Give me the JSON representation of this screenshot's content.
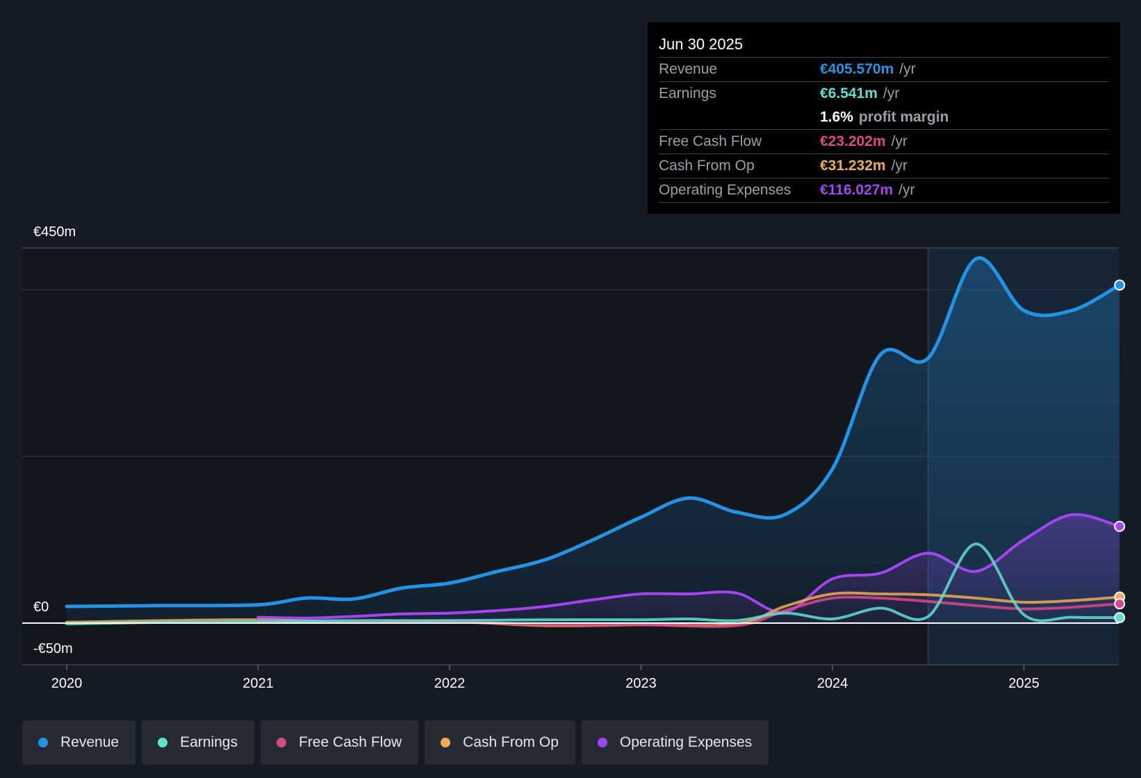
{
  "tooltip": {
    "date": "Jun 30 2025",
    "rows": {
      "revenue": {
        "label": "Revenue",
        "value": "€405.570m",
        "unit": "/yr",
        "color": "#2394e5"
      },
      "earnings": {
        "label": "Earnings",
        "value": "€6.541m",
        "unit": "/yr",
        "color": "#5fe0d0"
      },
      "margin": {
        "value": "1.6%",
        "unit": "profit margin"
      },
      "fcf": {
        "label": "Free Cash Flow",
        "value": "€23.202m",
        "unit": "/yr",
        "color": "#d9498a"
      },
      "cfo": {
        "label": "Cash From Op",
        "value": "€31.232m",
        "unit": "/yr",
        "color": "#efac54"
      },
      "opex": {
        "label": "Operating Expenses",
        "value": "€116.027m",
        "unit": "/yr",
        "color": "#a346f2"
      }
    }
  },
  "legend": [
    {
      "label": "Revenue",
      "color": "#2394e5"
    },
    {
      "label": "Earnings",
      "color": "#5fe0d0"
    },
    {
      "label": "Free Cash Flow",
      "color": "#d9498a"
    },
    {
      "label": "Cash From Op",
      "color": "#efac54"
    },
    {
      "label": "Operating Expenses",
      "color": "#a346f2"
    }
  ],
  "chart_data": {
    "type": "line",
    "title": "",
    "xlabel": "",
    "ylabel": "",
    "y_tick_labels": [
      "€450m",
      "€0",
      "-€50m"
    ],
    "ylim": [
      -50,
      450
    ],
    "xlim": [
      2020,
      2025.5
    ],
    "x_ticks": [
      2020,
      2021,
      2022,
      2023,
      2024,
      2025
    ],
    "x_tick_labels": [
      "2020",
      "2021",
      "2022",
      "2023",
      "2024",
      "2025"
    ],
    "highlight_from": 2024.5,
    "series": [
      {
        "name": "Revenue",
        "color": "#2394e5",
        "fill": true,
        "x": [
          2020,
          2020.5,
          2021,
          2021.25,
          2021.5,
          2021.75,
          2022,
          2022.25,
          2022.5,
          2022.75,
          2023,
          2023.25,
          2023.5,
          2023.75,
          2024,
          2024.25,
          2024.5,
          2024.75,
          2025,
          2025.25,
          2025.5
        ],
        "values": [
          20,
          21,
          22,
          30,
          29,
          42,
          48,
          62,
          76,
          100,
          127,
          150,
          133,
          130,
          185,
          322,
          318,
          437,
          375,
          375,
          405.57
        ]
      },
      {
        "name": "Earnings",
        "color": "#5fe0d0",
        "fill": false,
        "x": [
          2020,
          2020.5,
          2021,
          2021.5,
          2022,
          2022.5,
          2023,
          2023.25,
          2023.5,
          2023.75,
          2024,
          2024.25,
          2024.5,
          2024.75,
          2025,
          2025.25,
          2025.5
        ],
        "values": [
          -1,
          1,
          2,
          3,
          3,
          4,
          4,
          5,
          3,
          12,
          5,
          18,
          8,
          95,
          10,
          7,
          6.541
        ]
      },
      {
        "name": "Free Cash Flow",
        "color": "#d9498a",
        "fill": false,
        "x": [
          2021,
          2021.5,
          2022,
          2022.5,
          2023,
          2023.5,
          2023.75,
          2024,
          2024.25,
          2024.5,
          2024.75,
          2025,
          2025.25,
          2025.5
        ],
        "values": [
          3,
          1,
          2,
          -2,
          -2,
          -3,
          15,
          30,
          30,
          26,
          21,
          17,
          19,
          23.202
        ]
      },
      {
        "name": "Cash From Op",
        "color": "#efac54",
        "fill": false,
        "x": [
          2020,
          2020.5,
          2021,
          2021.5,
          2022,
          2022.5,
          2023,
          2023.5,
          2023.75,
          2024,
          2024.25,
          2024.5,
          2024.75,
          2025,
          2025.25,
          2025.5
        ],
        "values": [
          1,
          3,
          4,
          1,
          2,
          -3,
          -2,
          -1,
          20,
          35,
          35,
          34,
          30,
          25,
          27,
          31.232
        ]
      },
      {
        "name": "Operating Expenses",
        "color": "#a346f2",
        "fill": true,
        "x": [
          2021,
          2021.25,
          2021.5,
          2021.75,
          2022,
          2022.25,
          2022.5,
          2022.75,
          2023,
          2023.25,
          2023.5,
          2023.75,
          2024,
          2024.25,
          2024.5,
          2024.75,
          2025,
          2025.25,
          2025.5
        ],
        "values": [
          7,
          6,
          8,
          11,
          12,
          15,
          20,
          28,
          35,
          35,
          36,
          13,
          53,
          60,
          84,
          62,
          100,
          130,
          116.027
        ]
      }
    ]
  }
}
